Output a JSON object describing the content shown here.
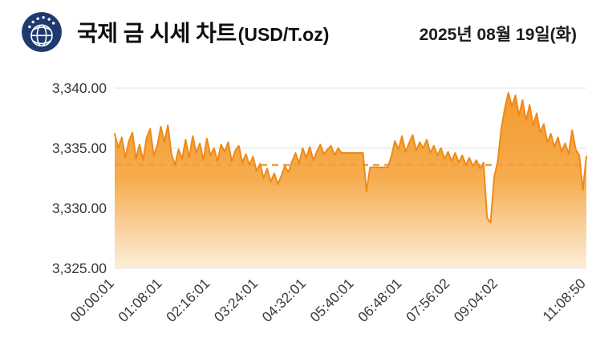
{
  "header": {
    "logo_icon": "globe-emblem-icon",
    "title": "국제 금 시세 차트",
    "title_unit": "(USD/T.oz)",
    "date": "2025년 08월 19일(화)"
  },
  "chart_data": {
    "type": "area",
    "title": "국제 금 시세 차트(USD/T.oz)",
    "xlabel": "",
    "ylabel": "",
    "x_tick_labels": [
      "00:00:01",
      "01:08:01",
      "02:16:01",
      "03:24:01",
      "04:32:01",
      "05:40:01",
      "06:48:01",
      "07:56:02",
      "09:04:02",
      "11:08:50"
    ],
    "y_tick_labels": [
      "3,340.00",
      "3,335.00",
      "3,330.00",
      "3,325.00"
    ],
    "y_ticks": [
      3340,
      3335,
      3330,
      3325
    ],
    "ylim": [
      3325,
      3340
    ],
    "grid": "horizontal-only",
    "reference_line_value": 3333.6,
    "colors": {
      "line": "#EE8A19",
      "fill_top": "#F3992B",
      "fill_mid": "#F6AC4E",
      "fill_bottom": "#FCEEDA",
      "reference_line": "#EF9F3F",
      "grid": "#E3E3E3",
      "logo_navy": "#1E3A6E"
    },
    "series": [
      {
        "name": "gold_price_usd_per_troy_oz",
        "values": [
          3336.2,
          3335.0,
          3335.9,
          3334.2,
          3335.6,
          3336.3,
          3334.1,
          3335.3,
          3334.0,
          3335.9,
          3336.6,
          3334.4,
          3335.2,
          3336.8,
          3335.5,
          3336.9,
          3334.5,
          3333.6,
          3334.9,
          3334.1,
          3335.7,
          3334.2,
          3336.0,
          3334.6,
          3335.4,
          3334.0,
          3335.8,
          3334.4,
          3335.0,
          3333.9,
          3335.3,
          3334.7,
          3335.5,
          3333.9,
          3334.8,
          3335.2,
          3333.8,
          3334.5,
          3333.6,
          3334.3,
          3333.1,
          3333.7,
          3332.5,
          3333.3,
          3332.2,
          3332.9,
          3332.0,
          3332.7,
          3333.5,
          3333.0,
          3333.9,
          3334.6,
          3333.7,
          3335.0,
          3334.2,
          3335.1,
          3334.0,
          3334.7,
          3335.3,
          3334.5,
          3334.9,
          3335.2,
          3334.4,
          3335.0,
          3334.6,
          3334.6,
          3334.6,
          3334.6,
          3334.6,
          3334.6,
          3334.6,
          3331.4,
          3333.4,
          3333.4,
          3333.4,
          3333.4,
          3333.4,
          3333.4,
          3334.3,
          3335.6,
          3334.9,
          3336.0,
          3334.7,
          3335.4,
          3336.1,
          3334.8,
          3335.5,
          3335.0,
          3335.7,
          3334.6,
          3335.2,
          3334.4,
          3335.0,
          3334.1,
          3334.7,
          3333.9,
          3334.6,
          3333.8,
          3334.4,
          3333.6,
          3334.2,
          3333.5,
          3334.0,
          3333.3,
          3333.8,
          3329.2,
          3328.8,
          3332.6,
          3333.9,
          3336.6,
          3338.3,
          3339.6,
          3338.5,
          3339.4,
          3337.7,
          3339.0,
          3337.3,
          3338.6,
          3336.9,
          3337.9,
          3336.3,
          3337.0,
          3335.5,
          3336.2,
          3335.1,
          3335.9,
          3334.7,
          3335.4,
          3334.5,
          3336.5,
          3334.9,
          3334.4,
          3331.5,
          3334.3
        ]
      }
    ]
  }
}
